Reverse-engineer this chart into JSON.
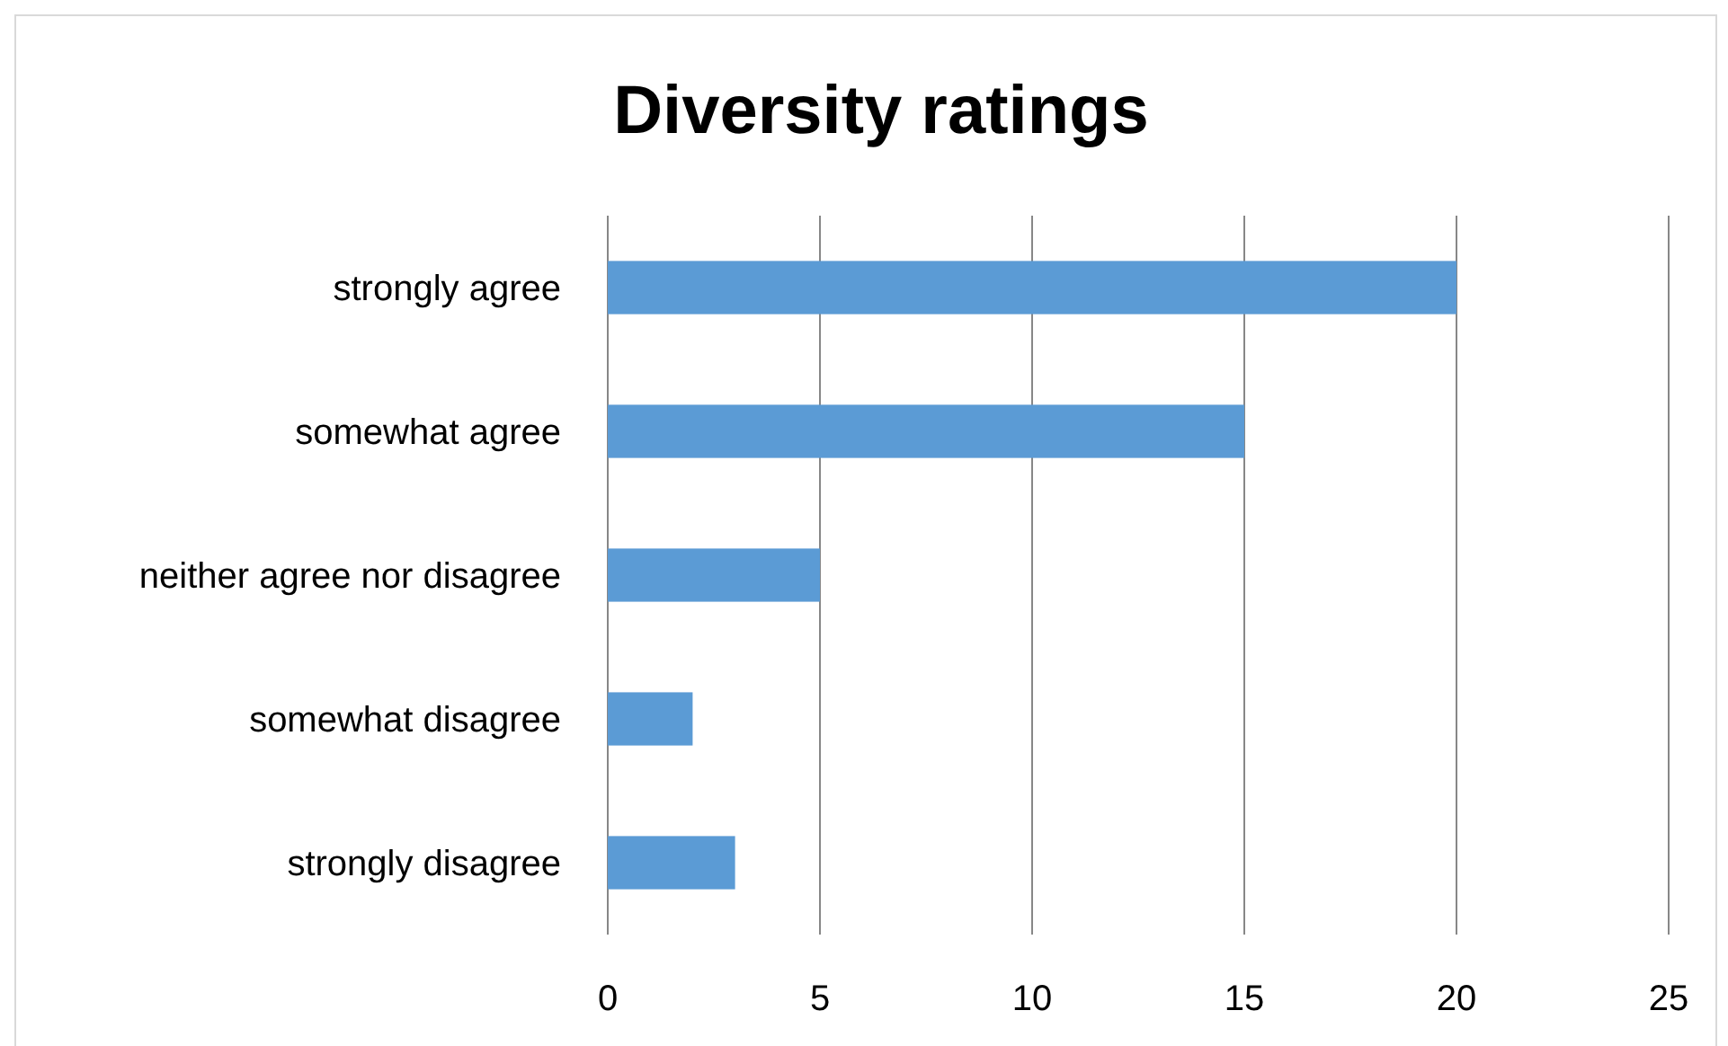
{
  "chart_data": {
    "type": "bar",
    "orientation": "horizontal",
    "title": "Diversity ratings",
    "categories": [
      "strongly agree",
      "somewhat agree",
      "neither agree nor disagree",
      "somewhat disagree",
      "strongly disagree"
    ],
    "values": [
      20,
      15,
      5,
      2,
      3
    ],
    "color": "#5b9bd5",
    "xlim": [
      0,
      25
    ],
    "xticks": [
      0,
      5,
      10,
      15,
      20,
      25
    ],
    "grid": "x"
  }
}
